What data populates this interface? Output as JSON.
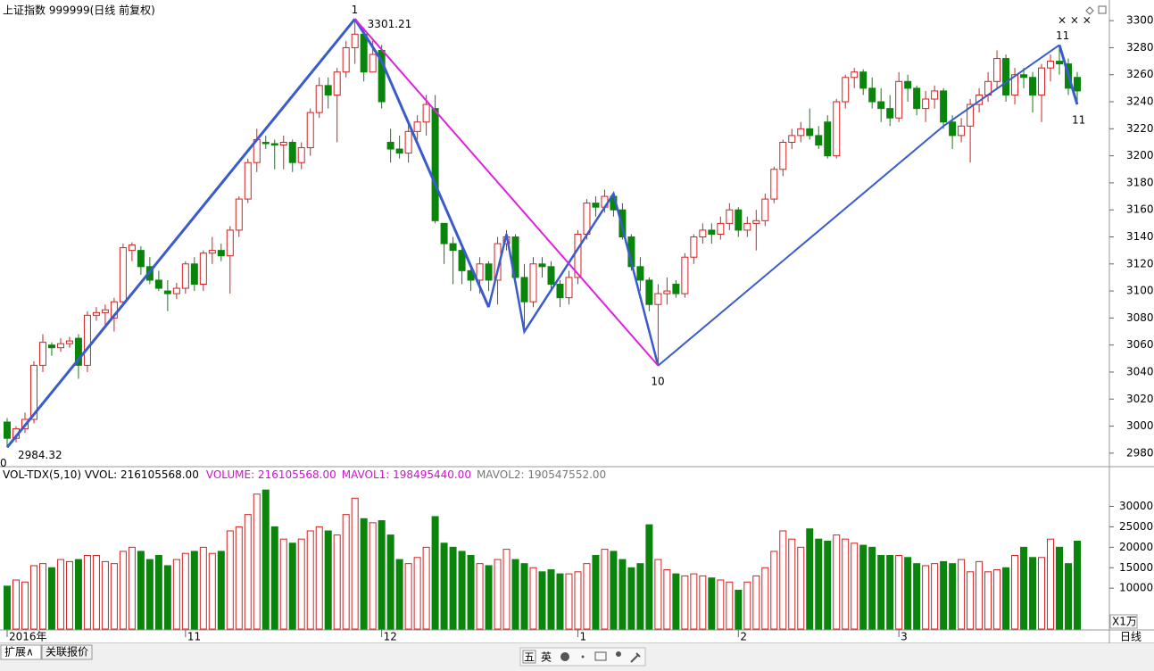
{
  "chart_data": {
    "type": "candlestick",
    "title": "上证指数 999999(日线 前复权)",
    "up_color": "#d42020",
    "down_color": "#0a840a",
    "ylim": [
      2970,
      3310
    ],
    "yticks": [
      2980,
      3000,
      3020,
      3040,
      3060,
      3080,
      3100,
      3120,
      3140,
      3160,
      3180,
      3200,
      3220,
      3240,
      3260,
      3280,
      3300
    ],
    "vol_ylim": [
      0,
      36000
    ],
    "vol_yticks": [
      10000,
      15000,
      20000,
      25000,
      30000
    ],
    "vol_unit": "X1万",
    "period": "日线",
    "vol_header": [
      "VOL-TDX(5,10) VVOL: 216105568.00",
      "VOLUME: 216105568.00",
      "MAVOL1: 198495440.00",
      "MAVOL2: 190547552.00"
    ],
    "xticks": [
      {
        "value": 0,
        "label": "2016年"
      },
      {
        "value": 20,
        "label": "11"
      },
      {
        "value": 42,
        "label": "12"
      },
      {
        "value": 64,
        "label": "1"
      },
      {
        "value": 82,
        "label": "2"
      },
      {
        "value": 100,
        "label": "3"
      }
    ],
    "candles": [
      [
        3003,
        3006,
        2984.32,
        2991
      ],
      [
        2991,
        3000,
        2988,
        2998
      ],
      [
        2998,
        3010,
        2995,
        3005
      ],
      [
        3005,
        3048,
        3002,
        3045
      ],
      [
        3045,
        3068,
        3040,
        3062
      ],
      [
        3060,
        3062,
        3052,
        3058
      ],
      [
        3058,
        3065,
        3055,
        3061
      ],
      [
        3061,
        3066,
        3058,
        3063
      ],
      [
        3065,
        3068,
        3035,
        3045
      ],
      [
        3045,
        3085,
        3040,
        3082
      ],
      [
        3082,
        3088,
        3078,
        3084
      ],
      [
        3084,
        3090,
        3075,
        3086
      ],
      [
        3080,
        3095,
        3070,
        3092
      ],
      [
        3092,
        3135,
        3090,
        3132
      ],
      [
        3130,
        3136,
        3122,
        3134
      ],
      [
        3130,
        3133,
        3112,
        3118
      ],
      [
        3118,
        3125,
        3105,
        3108
      ],
      [
        3108,
        3115,
        3100,
        3102
      ],
      [
        3100,
        3108,
        3085,
        3098
      ],
      [
        3098,
        3106,
        3094,
        3102
      ],
      [
        3102,
        3122,
        3098,
        3120
      ],
      [
        3120,
        3125,
        3100,
        3105
      ],
      [
        3105,
        3130,
        3100,
        3128
      ],
      [
        3128,
        3140,
        3120,
        3130
      ],
      [
        3130,
        3135,
        3122,
        3126
      ],
      [
        3126,
        3148,
        3098,
        3145
      ],
      [
        3145,
        3170,
        3140,
        3168
      ],
      [
        3168,
        3198,
        3165,
        3195
      ],
      [
        3195,
        3220,
        3188,
        3212
      ],
      [
        3210,
        3215,
        3205,
        3209
      ],
      [
        3209,
        3212,
        3190,
        3208
      ],
      [
        3208,
        3215,
        3190,
        3210
      ],
      [
        3210,
        3212,
        3188,
        3195
      ],
      [
        3195,
        3210,
        3190,
        3206
      ],
      [
        3206,
        3235,
        3200,
        3232
      ],
      [
        3232,
        3258,
        3228,
        3252
      ],
      [
        3252,
        3258,
        3235,
        3245
      ],
      [
        3245,
        3265,
        3210,
        3262
      ],
      [
        3262,
        3285,
        3258,
        3280
      ],
      [
        3280,
        3301.21,
        3268,
        3290
      ],
      [
        3290,
        3295,
        3255,
        3262
      ],
      [
        3262,
        3285,
        3262,
        3275
      ],
      [
        3278,
        3282,
        3235,
        3240
      ],
      [
        3210,
        3220,
        3195,
        3205
      ],
      [
        3205,
        3215,
        3198,
        3202
      ],
      [
        3202,
        3225,
        3195,
        3218
      ],
      [
        3218,
        3230,
        3212,
        3225
      ],
      [
        3225,
        3245,
        3215,
        3238
      ],
      [
        3235,
        3245,
        3150,
        3152
      ],
      [
        3150,
        3150,
        3120,
        3135
      ],
      [
        3135,
        3140,
        3105,
        3130
      ],
      [
        3130,
        3132,
        3105,
        3115
      ],
      [
        3115,
        3120,
        3100,
        3108
      ],
      [
        3108,
        3125,
        3098,
        3120
      ],
      [
        3120,
        3122,
        3100,
        3108
      ],
      [
        3108,
        3140,
        3090,
        3135
      ],
      [
        3135,
        3145,
        3130,
        3140
      ],
      [
        3140,
        3142,
        3105,
        3110
      ],
      [
        3110,
        3120,
        3070,
        3092
      ],
      [
        3092,
        3125,
        3088,
        3120
      ],
      [
        3120,
        3125,
        3110,
        3118
      ],
      [
        3118,
        3122,
        3100,
        3105
      ],
      [
        3105,
        3108,
        3088,
        3095
      ],
      [
        3095,
        3115,
        3090,
        3110
      ],
      [
        3110,
        3145,
        3105,
        3142
      ],
      [
        3142,
        3168,
        3138,
        3165
      ],
      [
        3165,
        3170,
        3155,
        3162
      ],
      [
        3162,
        3175,
        3158,
        3170
      ],
      [
        3170,
        3172,
        3155,
        3160
      ],
      [
        3160,
        3165,
        3138,
        3140
      ],
      [
        3140,
        3142,
        3115,
        3118
      ],
      [
        3118,
        3125,
        3100,
        3108
      ],
      [
        3108,
        3110,
        3085,
        3090
      ],
      [
        3090,
        3105,
        3044.75,
        3098
      ],
      [
        3098,
        3110,
        3090,
        3100
      ],
      [
        3105,
        3108,
        3095,
        3098
      ],
      [
        3098,
        3128,
        3095,
        3125
      ],
      [
        3125,
        3142,
        3120,
        3140
      ],
      [
        3140,
        3150,
        3135,
        3145
      ],
      [
        3145,
        3150,
        3135,
        3142
      ],
      [
        3142,
        3155,
        3138,
        3150
      ],
      [
        3150,
        3165,
        3145,
        3160
      ],
      [
        3160,
        3162,
        3140,
        3145
      ],
      [
        3145,
        3155,
        3140,
        3150
      ],
      [
        3150,
        3160,
        3130,
        3152
      ],
      [
        3152,
        3172,
        3148,
        3168
      ],
      [
        3168,
        3192,
        3165,
        3190
      ],
      [
        3190,
        3212,
        3185,
        3210
      ],
      [
        3210,
        3220,
        3205,
        3215
      ],
      [
        3215,
        3225,
        3210,
        3220
      ],
      [
        3220,
        3235,
        3212,
        3215
      ],
      [
        3215,
        3222,
        3205,
        3208
      ],
      [
        3225,
        3230,
        3198,
        3200
      ],
      [
        3200,
        3242,
        3198,
        3240
      ],
      [
        3240,
        3260,
        3235,
        3258
      ],
      [
        3258,
        3265,
        3250,
        3262
      ],
      [
        3262,
        3264,
        3245,
        3250
      ],
      [
        3250,
        3258,
        3235,
        3240
      ],
      [
        3240,
        3250,
        3225,
        3235
      ],
      [
        3235,
        3245,
        3222,
        3228
      ],
      [
        3228,
        3262,
        3225,
        3255
      ],
      [
        3255,
        3260,
        3240,
        3250
      ],
      [
        3250,
        3252,
        3230,
        3235
      ],
      [
        3235,
        3248,
        3225,
        3242
      ],
      [
        3242,
        3252,
        3235,
        3248
      ],
      [
        3248,
        3250,
        3220,
        3225
      ],
      [
        3225,
        3230,
        3205,
        3215
      ],
      [
        3215,
        3228,
        3210,
        3222
      ],
      [
        3222,
        3242,
        3195,
        3238
      ],
      [
        3238,
        3250,
        3232,
        3245
      ],
      [
        3245,
        3262,
        3240,
        3255
      ],
      [
        3255,
        3278,
        3250,
        3272
      ],
      [
        3272,
        3275,
        3240,
        3245
      ],
      [
        3245,
        3265,
        3238,
        3260
      ],
      [
        3260,
        3265,
        3250,
        3258
      ],
      [
        3258,
        3262,
        3232,
        3245
      ],
      [
        3245,
        3268,
        3225,
        3265
      ],
      [
        3265,
        3275,
        3255,
        3270
      ],
      [
        3270,
        3282,
        3260,
        3268
      ],
      [
        3268,
        3272,
        3245,
        3250
      ],
      [
        3258,
        3262,
        3240,
        3248
      ]
    ],
    "volume": [
      10500,
      12000,
      11500,
      15500,
      16000,
      15000,
      17000,
      16500,
      17000,
      18000,
      18000,
      16500,
      16000,
      19000,
      20000,
      19000,
      17000,
      18000,
      15500,
      17000,
      18500,
      19000,
      20000,
      18500,
      19000,
      24000,
      25000,
      28000,
      33000,
      34000,
      25000,
      22000,
      21000,
      22000,
      24000,
      25000,
      24000,
      23000,
      28000,
      32000,
      27000,
      26000,
      26500,
      23000,
      17000,
      16000,
      17500,
      20000,
      27500,
      21000,
      20000,
      19000,
      18000,
      16000,
      15500,
      17000,
      19500,
      17000,
      16000,
      15000,
      14000,
      14500,
      13500,
      13500,
      14000,
      16000,
      18000,
      19500,
      19000,
      17000,
      15000,
      16000,
      25500,
      17000,
      14500,
      13500,
      13000,
      13500,
      13000,
      12500,
      12000,
      11500,
      9500,
      11500,
      13000,
      15000,
      19000,
      24000,
      22000,
      20000,
      24500,
      22000,
      21500,
      23000,
      22000,
      21000,
      20500,
      20000,
      18000,
      18000,
      18000,
      17500,
      16000,
      15500,
      16000,
      16500,
      16000,
      17000,
      14000,
      16500,
      14000,
      14500,
      15000,
      18000,
      20000,
      17500,
      17500,
      22000,
      20000,
      16000,
      21500
    ],
    "wave_lines": [
      {
        "color": "#3a5bcc",
        "width": 3,
        "points": [
          [
            0,
            2984.32
          ],
          [
            39,
            3301.21
          ]
        ]
      },
      {
        "color": "#3a5bcc",
        "width": 3,
        "points": [
          [
            39,
            3301.21
          ],
          [
            42,
            3270
          ],
          [
            54,
            3088
          ]
        ]
      },
      {
        "color": "#3a5bcc",
        "width": 2.5,
        "points": [
          [
            54,
            3088
          ],
          [
            56,
            3142
          ],
          [
            58,
            3070
          ],
          [
            68,
            3172
          ],
          [
            73,
            3044.75
          ]
        ]
      },
      {
        "color": "#e020e0",
        "width": 2,
        "points": [
          [
            39,
            3301.21
          ],
          [
            73,
            3044.75
          ]
        ]
      },
      {
        "color": "#3a5bcc",
        "width": 2,
        "points": [
          [
            73,
            3044.75
          ],
          [
            105,
            3222
          ],
          [
            118,
            3282
          ]
        ]
      },
      {
        "color": "#3a5bcc",
        "width": 3,
        "points": [
          [
            118,
            3282
          ],
          [
            120,
            3238
          ]
        ]
      }
    ],
    "wave_labels": [
      {
        "text": "0",
        "at": [
          0,
          2984.32
        ]
      },
      {
        "text": "1",
        "at": [
          39,
          3301.21
        ]
      },
      {
        "text": "10",
        "at": [
          73,
          3044.75
        ]
      },
      {
        "text": "11",
        "at": [
          118,
          3282
        ]
      },
      {
        "text": "11",
        "at": [
          120,
          3238
        ]
      }
    ]
  },
  "ui": {
    "tabs": [
      "扩展∧",
      "关联报价"
    ],
    "toolbar": [
      "五",
      "英"
    ]
  }
}
